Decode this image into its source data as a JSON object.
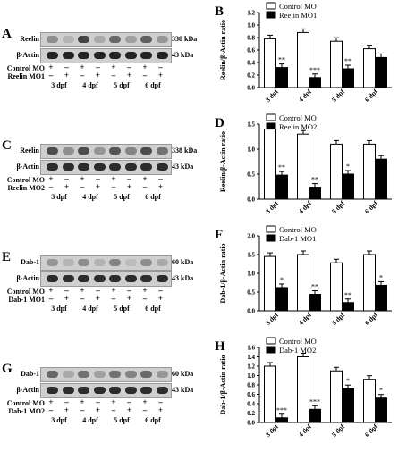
{
  "panels": [
    {
      "blot_letter": "A",
      "chart_letter": "B",
      "target": "Reelin",
      "target_kda": "338 kDa",
      "loading": "β-Actin",
      "loading_kda": "43 kDa",
      "rows": [
        "Control MO",
        "Reelin MO1"
      ],
      "days": [
        "3 dpf",
        "4 dpf",
        "5 dpf",
        "6 dpf"
      ],
      "chart_data": {
        "type": "bar",
        "ylabel": "Reelin/β-Actin ratio",
        "ylim": [
          0,
          1.2
        ],
        "yticks": [
          0.0,
          0.2,
          0.4,
          0.6,
          0.8,
          1.0,
          1.2
        ],
        "categories": [
          "3 dpf",
          "4 dpf",
          "5 dpf",
          "6 dpf"
        ],
        "series": [
          {
            "name": "Control MO",
            "values": [
              0.78,
              0.88,
              0.74,
              0.62
            ]
          },
          {
            "name": "Reelin MO1",
            "values": [
              0.32,
              0.16,
              0.3,
              0.48
            ]
          }
        ],
        "significance": [
          "**",
          "***",
          "**",
          ""
        ]
      }
    },
    {
      "blot_letter": "C",
      "chart_letter": "D",
      "target": "Reelin",
      "target_kda": "338 kDa",
      "loading": "β-Actin",
      "loading_kda": "43 kDa",
      "rows": [
        "Control MO",
        "Reelin MO2"
      ],
      "days": [
        "3 dpf",
        "4 dpf",
        "5 dpf",
        "6 dpf"
      ],
      "chart_data": {
        "type": "bar",
        "ylabel": "Reelin/β-Actin ratio",
        "ylim": [
          0,
          1.5
        ],
        "yticks": [
          0.0,
          0.5,
          1.0,
          1.5
        ],
        "categories": [
          "3 dpf",
          "4 dpf",
          "5 dpf",
          "6 dpf"
        ],
        "series": [
          {
            "name": "Control MO",
            "values": [
              1.4,
              1.3,
              1.1,
              1.1
            ]
          },
          {
            "name": "Reelin MO2",
            "values": [
              0.48,
              0.24,
              0.5,
              0.8
            ]
          }
        ],
        "significance": [
          "**",
          "**",
          "*",
          ""
        ]
      }
    },
    {
      "blot_letter": "E",
      "chart_letter": "F",
      "target": "Dab-1",
      "target_kda": "60 kDa",
      "loading": "β-Actin",
      "loading_kda": "43 kDa",
      "rows": [
        "Control MO",
        "Dab-1 MO1"
      ],
      "days": [
        "3 dpf",
        "4 dpf",
        "5 dpf",
        "6 dpf"
      ],
      "chart_data": {
        "type": "bar",
        "ylabel": "Dab-1/β-Actin ratio",
        "ylim": [
          0,
          2.0
        ],
        "yticks": [
          0.0,
          0.5,
          1.0,
          1.5,
          2.0
        ],
        "categories": [
          "3 dpf",
          "4 dpf",
          "5 dpf",
          "6 dpf"
        ],
        "series": [
          {
            "name": "Control MO",
            "values": [
              1.45,
              1.5,
              1.28,
              1.5
            ]
          },
          {
            "name": "Dab-1 MO1",
            "values": [
              0.62,
              0.44,
              0.22,
              0.68
            ]
          }
        ],
        "significance": [
          "*",
          "**",
          "**",
          "*"
        ]
      }
    },
    {
      "blot_letter": "G",
      "chart_letter": "H",
      "target": "Dab-1",
      "target_kda": "60 kDa",
      "loading": "β-Actin",
      "loading_kda": "43 kDa",
      "rows": [
        "Control MO",
        "Dab-1 MO2"
      ],
      "days": [
        "3 dpf",
        "4 dpf",
        "5 dpf",
        "6 dpf"
      ],
      "chart_data": {
        "type": "bar",
        "ylabel": "Dab-1/β-Actin ratio",
        "ylim": [
          0,
          1.6
        ],
        "yticks": [
          0.0,
          0.2,
          0.4,
          0.6,
          0.8,
          1.0,
          1.2,
          1.4,
          1.6
        ],
        "categories": [
          "3 dpf",
          "4 dpf",
          "5 dpf",
          "6 dpf"
        ],
        "series": [
          {
            "name": "Control MO",
            "values": [
              1.2,
              1.4,
              1.1,
              0.92
            ]
          },
          {
            "name": "Dab-1 MO2",
            "values": [
              0.1,
              0.28,
              0.72,
              0.52
            ]
          }
        ],
        "significance": [
          "***",
          "***",
          "*",
          "*"
        ]
      }
    }
  ]
}
